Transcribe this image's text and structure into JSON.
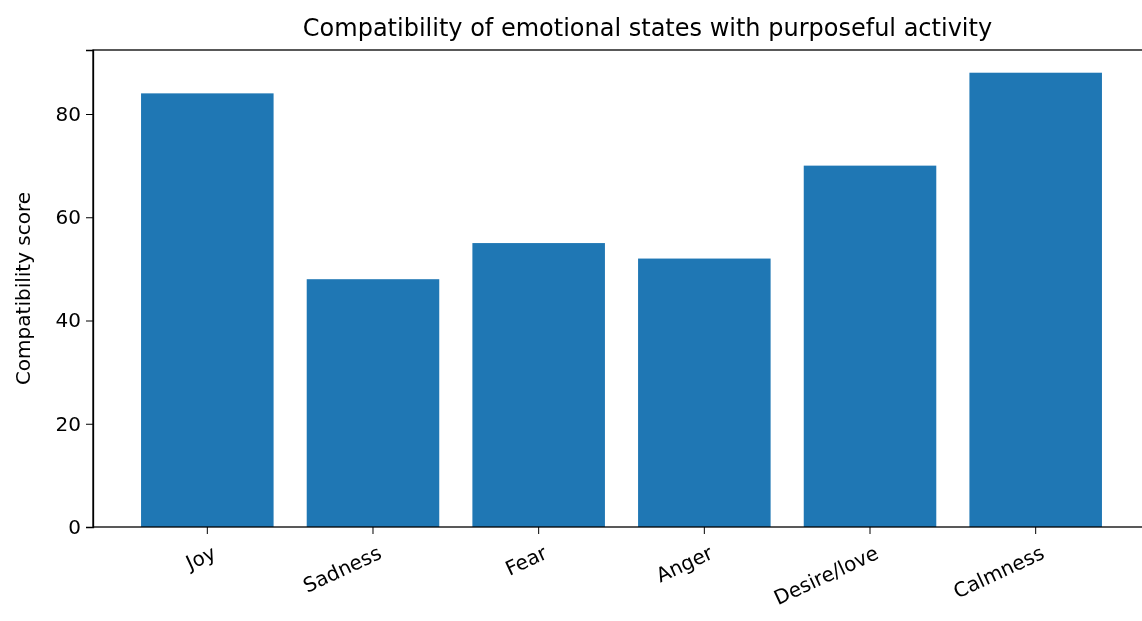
{
  "chart_data": {
    "type": "bar",
    "title": "Compatibility of emotional states with purposeful activity",
    "ylabel": "Compatibility score",
    "categories": [
      "Joy",
      "Sadness",
      "Fear",
      "Anger",
      "Desire/love",
      "Calmness"
    ],
    "values": [
      84,
      48,
      55,
      52,
      70,
      88
    ],
    "color": "#1f77b4",
    "ylim": [
      0,
      92.4
    ],
    "yticks": [
      0,
      20,
      40,
      60,
      80
    ],
    "grid": false
  }
}
